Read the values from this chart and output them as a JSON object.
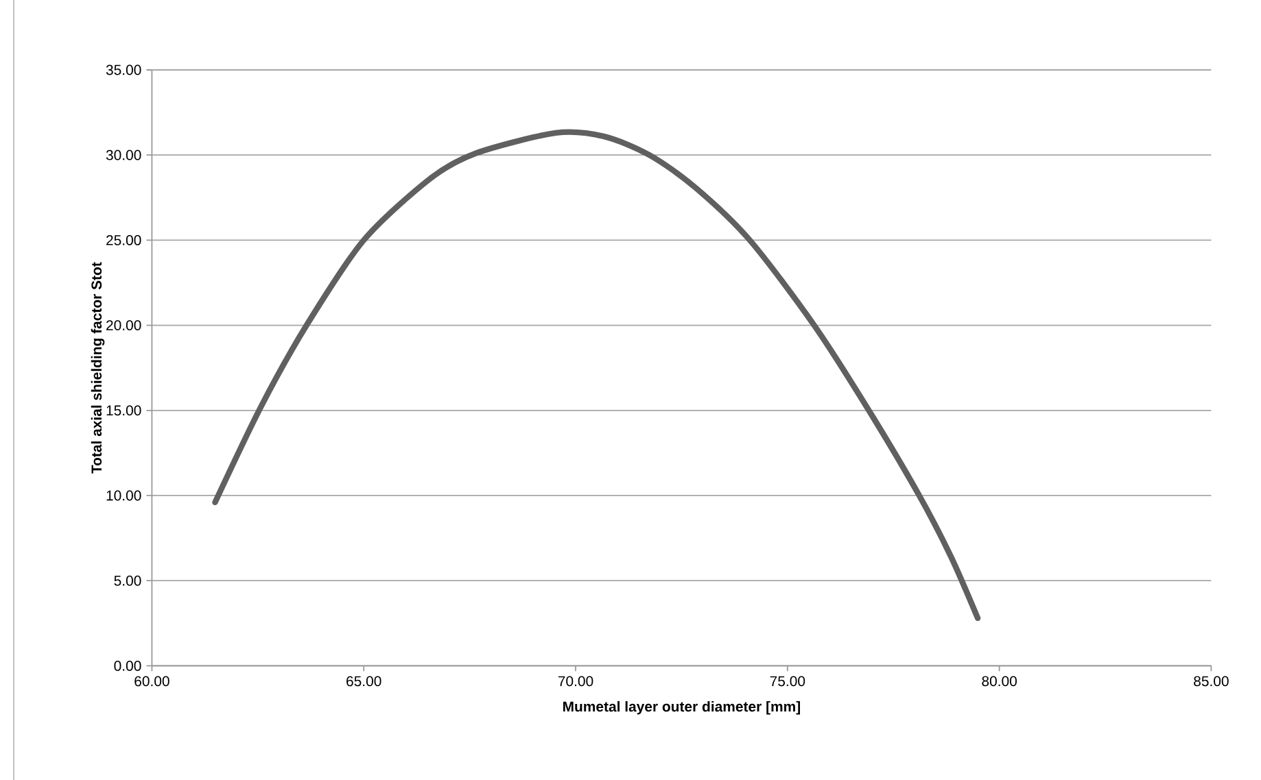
{
  "chart_data": {
    "type": "line",
    "xlabel": "Mumetal layer outer diameter [mm]",
    "ylabel": "Total axial shielding factor Stot",
    "series": [
      {
        "color": "#606060",
        "x": [
          61.49,
          62.57,
          63.65,
          65.0,
          66.56,
          67.64,
          69.53,
          70.66,
          71.74,
          72.82,
          74.11,
          75.63,
          76.92,
          78.11,
          78.86,
          79.49
        ],
        "values": [
          9.6,
          15.2,
          20.0,
          25.0,
          28.6,
          30.1,
          31.3,
          31.1,
          30.0,
          28.1,
          25.0,
          20.0,
          15.0,
          10.0,
          6.4,
          2.8
        ]
      }
    ],
    "xlim": [
      60,
      85
    ],
    "ylim": [
      0,
      35
    ],
    "xticks": [
      {
        "value": 60,
        "label": "60.00"
      },
      {
        "value": 65,
        "label": "65.00"
      },
      {
        "value": 70,
        "label": "70.00"
      },
      {
        "value": 75,
        "label": "75.00"
      },
      {
        "value": 80,
        "label": "80.00"
      },
      {
        "value": 85,
        "label": "85.00"
      }
    ],
    "yticks": [
      {
        "value": 0,
        "label": "0.00"
      },
      {
        "value": 5,
        "label": "5.00"
      },
      {
        "value": 10,
        "label": "10.00"
      },
      {
        "value": 15,
        "label": "15.00"
      },
      {
        "value": 20,
        "label": "20.00"
      },
      {
        "value": 25,
        "label": "25.00"
      },
      {
        "value": 30,
        "label": "30.00"
      },
      {
        "value": 35,
        "label": "35.00"
      }
    ],
    "grid": "y",
    "line_style": "solid",
    "marker": "none"
  }
}
